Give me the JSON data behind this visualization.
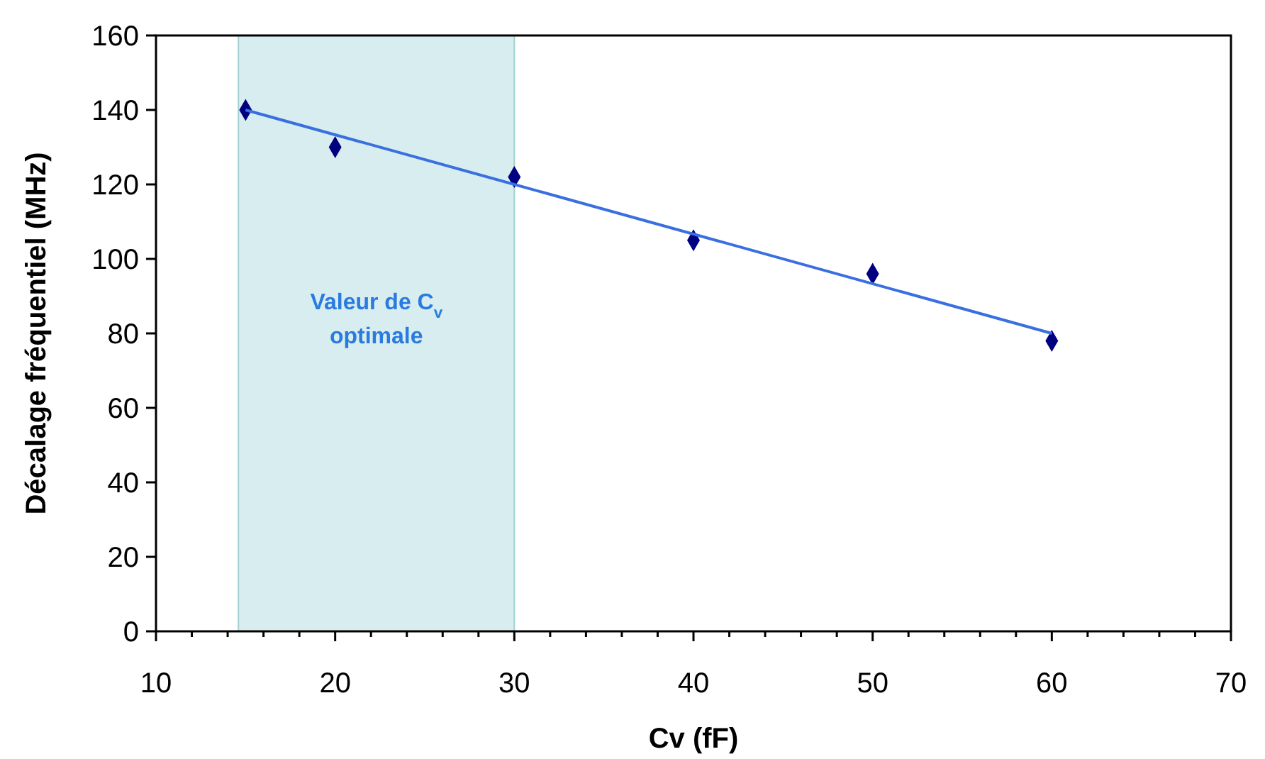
{
  "chart_data": {
    "type": "scatter",
    "xlabel": "Cv (fF)",
    "ylabel": "Décalage fréquentiel (MHz)",
    "x": [
      15,
      20,
      30,
      40,
      50,
      60
    ],
    "series": [
      {
        "color": "#000080",
        "values": [
          140,
          130,
          122,
          105,
          96,
          78
        ],
        "marker": "diamond"
      },
      {
        "type": "line",
        "color": "#3a6fe0",
        "x": [
          15,
          60
        ],
        "values": [
          140,
          80
        ],
        "marker": "none"
      }
    ],
    "xlim": [
      10,
      70
    ],
    "xticks": [
      10,
      {
        "value": 12,
        "label": null
      },
      {
        "value": 14,
        "label": null
      },
      {
        "value": 16,
        "label": null
      },
      {
        "value": 18,
        "label": null
      },
      20,
      {
        "value": 22,
        "label": null
      },
      {
        "value": 24,
        "label": null
      },
      {
        "value": 26,
        "label": null
      },
      {
        "value": 28,
        "label": null
      },
      30,
      {
        "value": 32,
        "label": null
      },
      {
        "value": 34,
        "label": null
      },
      {
        "value": 36,
        "label": null
      },
      {
        "value": 38,
        "label": null
      },
      40,
      {
        "value": 42,
        "label": null
      },
      {
        "value": 44,
        "label": null
      },
      {
        "value": 46,
        "label": null
      },
      {
        "value": 48,
        "label": null
      },
      50,
      {
        "value": 52,
        "label": null
      },
      {
        "value": 54,
        "label": null
      },
      {
        "value": 56,
        "label": null
      },
      {
        "value": 58,
        "label": null
      },
      60,
      {
        "value": 62,
        "label": null
      },
      {
        "value": 64,
        "label": null
      },
      {
        "value": 66,
        "label": null
      },
      {
        "value": 68,
        "label": null
      },
      70
    ],
    "ylim": [
      0,
      160
    ],
    "yticks": [
      0,
      20,
      40,
      60,
      80,
      100,
      120,
      140,
      160
    ],
    "bands": [
      {
        "axis": "x",
        "from": 14.6,
        "to": 30,
        "label": "Valeur de C$_{v}$ optimale",
        "color": "#d3ecee"
      }
    ],
    "grid": false
  }
}
